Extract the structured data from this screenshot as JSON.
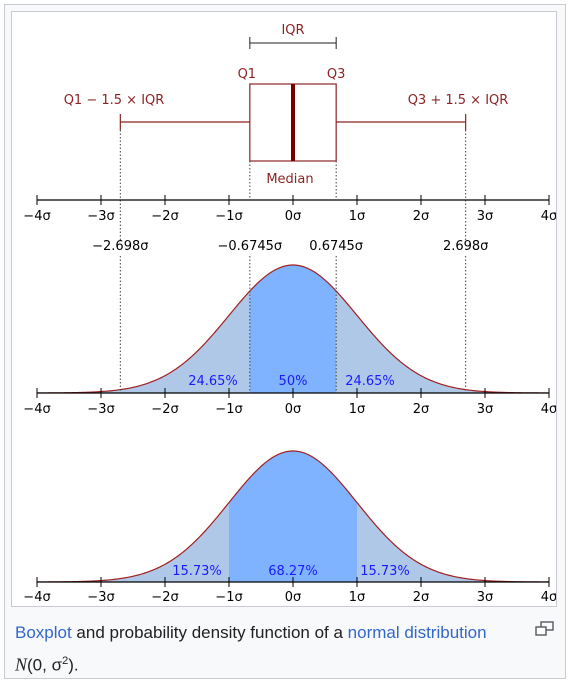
{
  "figure": {
    "boxplot": {
      "iqr_label": "IQR",
      "q1_label": "Q1",
      "q3_label": "Q3",
      "lower_fence_label": "Q1 − 1.5 × IQR",
      "upper_fence_label": "Q3 + 1.5 × IQR",
      "median_label": "Median",
      "box_color": "#8b2525",
      "median_color": "#7a0000"
    },
    "axis_tick_labels": [
      "−4σ",
      "−3σ",
      "−2σ",
      "−1σ",
      "0σ",
      "1σ",
      "2σ",
      "3σ",
      "4σ"
    ],
    "axis_ticks": [
      -4,
      -3,
      -2,
      -1,
      0,
      1,
      2,
      3,
      4
    ],
    "fence_values": [
      {
        "x": -2.698,
        "label": "−2.698σ"
      },
      {
        "x": -0.6745,
        "label": "−0.6745σ"
      },
      {
        "x": 0.6745,
        "label": "0.6745σ"
      },
      {
        "x": 2.698,
        "label": "2.698σ"
      }
    ],
    "pdf_quartiles": {
      "left_pct": "24.65%",
      "center_pct": "50%",
      "right_pct": "24.65%",
      "center_bounds": [
        -0.6745,
        0.6745
      ],
      "outer_bounds": [
        -2.698,
        2.698
      ]
    },
    "pdf_sigma": {
      "left_pct": "15.73%",
      "center_pct": "68.27%",
      "right_pct": "15.73%",
      "center_bounds": [
        -1,
        1
      ]
    },
    "colors": {
      "center_fill": "#80b3ff",
      "tail_fill": "#b0c8e8",
      "curve": "#a02020",
      "pct_text": "#1a1aff",
      "axis": "#000000"
    }
  },
  "caption": {
    "link1": "Boxplot",
    "text1": " and probability density function of a ",
    "link2": "normal distribution",
    "text2": " ",
    "formula_n": "N",
    "formula_args": "(0, σ",
    "formula_sup": "2",
    "formula_close": ")."
  },
  "enlarge_icon": "enlarge-icon"
}
